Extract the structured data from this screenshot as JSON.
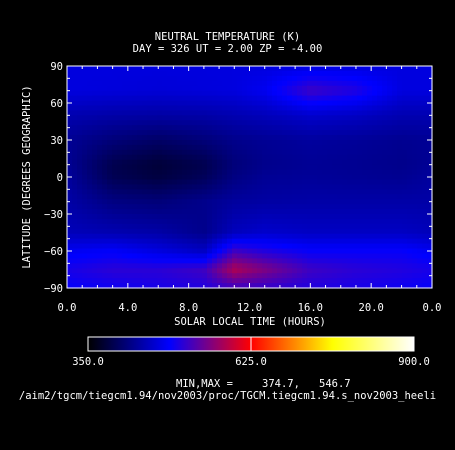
{
  "chart_data": {
    "type": "heatmap",
    "title": "NEUTRAL TEMPERATURE (K)",
    "subtitle": "DAY = 326  UT =  2.00  ZP =  -4.00",
    "xlabel": "SOLAR LOCAL TIME (HOURS)",
    "ylabel": "LATITUDE (DEGREES GEOGRAPHIC)",
    "xlim": [
      0,
      24
    ],
    "ylim": [
      -90,
      90
    ],
    "x_ticks": [
      "0.0",
      "4.0",
      "8.0",
      "12.0",
      "16.0",
      "20.0",
      "0.0"
    ],
    "y_ticks": [
      "−90",
      "−60",
      "−30",
      "0",
      "30",
      "60",
      "90"
    ],
    "colorbar": {
      "min": 350.0,
      "max": 900.0,
      "labels": [
        "350.0",
        "625.0",
        "900.0"
      ],
      "colors": [
        "#000000",
        "#0000ff",
        "#ff0000",
        "#ffff00",
        "#ffffff"
      ]
    },
    "grid_x_hours": [
      0,
      3,
      6,
      9,
      11,
      13,
      16,
      19,
      22,
      24
    ],
    "grid_y_lat": [
      90,
      70,
      50,
      30,
      10,
      0,
      -20,
      -45,
      -60,
      -75,
      -90
    ],
    "z": [
      [
        470,
        470,
        470,
        470,
        470,
        470,
        470,
        470,
        470,
        470
      ],
      [
        470,
        468,
        466,
        468,
        470,
        480,
        520,
        505,
        470,
        470
      ],
      [
        445,
        440,
        438,
        440,
        445,
        450,
        460,
        455,
        445,
        445
      ],
      [
        430,
        415,
        405,
        415,
        425,
        430,
        435,
        432,
        428,
        430
      ],
      [
        430,
        392,
        380,
        392,
        415,
        425,
        430,
        428,
        425,
        430
      ],
      [
        435,
        395,
        385,
        398,
        420,
        430,
        432,
        430,
        428,
        435
      ],
      [
        440,
        420,
        415,
        425,
        435,
        438,
        440,
        440,
        440,
        440
      ],
      [
        450,
        445,
        440,
        425,
        452,
        460,
        455,
        455,
        455,
        450
      ],
      [
        480,
        485,
        470,
        455,
        520,
        505,
        490,
        490,
        490,
        480
      ],
      [
        500,
        510,
        510,
        520,
        580,
        555,
        520,
        510,
        505,
        500
      ],
      [
        490,
        495,
        500,
        505,
        520,
        515,
        505,
        500,
        495,
        490
      ]
    ]
  },
  "stats": {
    "label": "MIN,MAX =",
    "min": "374.7,",
    "max": "546.7"
  },
  "footer": {
    "path": "/aim2/tgcm/tiegcm1.94/nov2003/proc/TGCM.tiegcm1.94.s_nov2003_heeli"
  }
}
